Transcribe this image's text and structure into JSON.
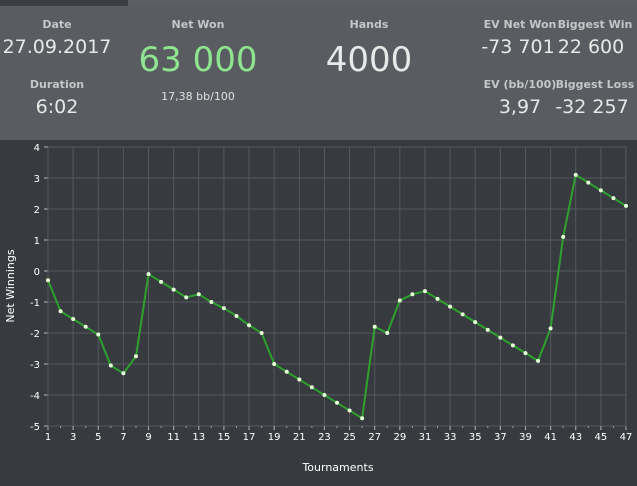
{
  "stats": {
    "date_label": "Date",
    "date_value": "27.09.2017",
    "duration_label": "Duration",
    "duration_value": "6:02",
    "net_won_label": "Net Won",
    "net_won_value": "63 000",
    "net_won_sub": "17,38 bb/100",
    "hands_label": "Hands",
    "hands_value": "4000",
    "ev_net_won_label": "EV Net Won",
    "ev_net_won_value": "-73 701",
    "ev_bb_label": "EV (bb/100)",
    "ev_bb_value": "3,97",
    "biggest_win_label": "Biggest Win",
    "biggest_win_value": "22 600",
    "biggest_loss_label": "Biggest Loss",
    "biggest_loss_value": "-32 257"
  },
  "colors": {
    "net_won": "#8fe48f",
    "line": "#2ea02e",
    "point": "#e6ffd9"
  },
  "chart_data": {
    "type": "line",
    "xlabel": "Tournaments",
    "ylabel": "Net Winnings",
    "xlim": [
      1,
      47
    ],
    "ylim": [
      -5,
      4
    ],
    "x_ticks": [
      "1",
      "3",
      "5",
      "7",
      "9",
      "11",
      "13",
      "15",
      "17",
      "19",
      "21",
      "23",
      "25",
      "27",
      "29",
      "31",
      "33",
      "35",
      "37",
      "39",
      "41",
      "43",
      "45",
      "47"
    ],
    "y_ticks": [
      "4",
      "3",
      "2",
      "1",
      "0",
      "-1",
      "-2",
      "-3",
      "-4",
      "-5"
    ],
    "grid": true,
    "series": [
      {
        "x": [
          1,
          2,
          3,
          4,
          5,
          6,
          7,
          8,
          9,
          10,
          11,
          12,
          13,
          14,
          15,
          16,
          17,
          18,
          19,
          20,
          21,
          22,
          23,
          24,
          25,
          26,
          27,
          28,
          29,
          30,
          31,
          32,
          33,
          34,
          35,
          36,
          37,
          38,
          39,
          40,
          41,
          42,
          43,
          44,
          45,
          46,
          47
        ],
        "values": [
          -0.3,
          -1.3,
          -1.55,
          -1.8,
          -2.05,
          -3.05,
          -3.3,
          -2.75,
          -0.1,
          -0.35,
          -0.6,
          -0.85,
          -0.75,
          -1.0,
          -1.2,
          -1.45,
          -1.75,
          -2.0,
          -3.0,
          -3.25,
          -3.5,
          -3.75,
          -4.0,
          -4.25,
          -4.5,
          -4.75,
          -1.8,
          -2.0,
          -0.95,
          -0.75,
          -0.65,
          -0.9,
          -1.15,
          -1.4,
          -1.65,
          -1.9,
          -2.15,
          -2.4,
          -2.65,
          -2.9,
          -1.85,
          1.1,
          3.1,
          2.85,
          2.6,
          2.35,
          2.1
        ]
      }
    ]
  }
}
